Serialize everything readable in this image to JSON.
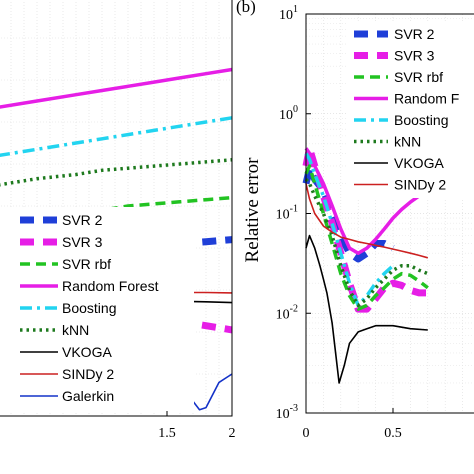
{
  "chart_data": [
    {
      "type": "line",
      "title": "",
      "xlabel": "",
      "ylabel": "",
      "xlim": [
        0.2,
        2
      ],
      "ylim": [
        0,
        1
      ],
      "x_ticks": [
        "1.5",
        "2"
      ],
      "x_tick_values": [
        1.5,
        2
      ],
      "grid": true,
      "legend_position": "bottom-left",
      "series": [
        {
          "name": "SVR 2",
          "color": "#1f3fd8",
          "style": "bold-dash",
          "x": [
            0.2,
            0.5,
            0.8,
            1.0,
            1.2,
            1.4,
            1.6,
            1.8,
            2.0
          ],
          "y": [
            0.34,
            0.36,
            0.38,
            0.39,
            0.4,
            0.405,
            0.41,
            0.415,
            0.42
          ]
        },
        {
          "name": "SVR 3",
          "color": "#e61ee6",
          "style": "bold-dash",
          "x": [
            0.2,
            0.5,
            0.8,
            1.0,
            1.2,
            1.4,
            1.6,
            1.8,
            2.0
          ],
          "y": [
            0.3,
            0.28,
            0.265,
            0.255,
            0.245,
            0.235,
            0.225,
            0.215,
            0.205
          ]
        },
        {
          "name": "SVR rbf",
          "color": "#22c322",
          "style": "dash",
          "x": [
            0.2,
            0.5,
            0.8,
            1.0,
            1.2,
            1.4,
            1.6,
            1.8,
            2.0
          ],
          "y": [
            0.44,
            0.46,
            0.48,
            0.49,
            0.5,
            0.505,
            0.51,
            0.515,
            0.52
          ]
        },
        {
          "name": "Random Forest",
          "color": "#e61ee6",
          "style": "solid-thick",
          "x": [
            0.2,
            0.5,
            0.8,
            1.0,
            1.2,
            1.4,
            1.6,
            1.8,
            2.0
          ],
          "y": [
            0.735,
            0.75,
            0.765,
            0.775,
            0.785,
            0.795,
            0.805,
            0.815,
            0.825
          ]
        },
        {
          "name": "Boosting",
          "color": "#22d4f0",
          "style": "dash-dot",
          "x": [
            0.2,
            0.5,
            0.8,
            1.0,
            1.2,
            1.4,
            1.6,
            1.8,
            2.0
          ],
          "y": [
            0.62,
            0.635,
            0.65,
            0.66,
            0.67,
            0.68,
            0.69,
            0.7,
            0.71
          ]
        },
        {
          "name": "kNN",
          "color": "#1e7a1e",
          "style": "dot",
          "x": [
            0.2,
            0.5,
            0.8,
            1.0,
            1.2,
            1.4,
            1.6,
            1.8,
            2.0
          ],
          "y": [
            0.55,
            0.565,
            0.575,
            0.585,
            0.59,
            0.595,
            0.6,
            0.605,
            0.61
          ]
        },
        {
          "name": "VKOGA",
          "color": "#000000",
          "style": "solid",
          "x": [
            0.2,
            0.5,
            0.8,
            1.0,
            1.2,
            1.4,
            1.6,
            1.8,
            2.0
          ],
          "y": [
            0.26,
            0.262,
            0.265,
            0.268,
            0.27,
            0.272,
            0.273,
            0.272,
            0.27
          ]
        },
        {
          "name": "SINDy 2",
          "color": "#cc2020",
          "style": "solid",
          "x": [
            0.2,
            0.5,
            0.8,
            1.0,
            1.2,
            1.4,
            1.6,
            1.8,
            2.0
          ],
          "y": [
            0.285,
            0.288,
            0.29,
            0.292,
            0.293,
            0.294,
            0.294,
            0.294,
            0.293
          ]
        },
        {
          "name": "Galerkin",
          "color": "#1432c8",
          "style": "solid",
          "x": [
            0.2,
            0.3,
            0.4,
            0.5,
            0.6,
            0.7,
            0.8,
            0.9,
            1.0,
            1.1,
            1.2,
            1.3,
            1.4,
            1.5,
            1.6,
            1.7,
            1.75,
            1.8,
            1.85,
            1.9,
            2.0
          ],
          "y": [
            0.09,
            0.08,
            0.07,
            0.075,
            0.09,
            0.1,
            0.085,
            0.065,
            0.055,
            0.07,
            0.1,
            0.11,
            0.09,
            0.07,
            0.055,
            0.035,
            0.015,
            0.02,
            0.05,
            0.08,
            0.1
          ]
        }
      ]
    },
    {
      "type": "line",
      "panel_label": "(b)",
      "title": "",
      "xlabel": "",
      "ylabel": "Relative error",
      "y_scale": "log",
      "xlim": [
        0,
        1
      ],
      "ylim": [
        0.001,
        10
      ],
      "x_ticks": [
        "0",
        "0.5"
      ],
      "x_tick_values": [
        0,
        0.5
      ],
      "y_ticks": [
        "10^1",
        "10^0",
        "10^-1",
        "10^-2",
        "10^-3"
      ],
      "y_tick_values": [
        10,
        1,
        0.1,
        0.01,
        0.001
      ],
      "grid": true,
      "legend_position": "top-right",
      "legend_labels": [
        "SVR 2",
        "SVR 3",
        "SVR rbf",
        "Random F",
        "Boosting",
        "kNN",
        "VKOGA",
        "SINDy 2"
      ],
      "series": [
        {
          "name": "SVR 2",
          "color": "#1f3fd8",
          "style": "bold-dash",
          "x": [
            0.0,
            0.02,
            0.05,
            0.1,
            0.15,
            0.2,
            0.25,
            0.3,
            0.35,
            0.4,
            0.45,
            0.5
          ],
          "y": [
            0.2,
            0.28,
            0.22,
            0.17,
            0.1,
            0.06,
            0.04,
            0.035,
            0.04,
            0.05,
            0.05,
            0.045
          ]
        },
        {
          "name": "SVR 3",
          "color": "#e61ee6",
          "style": "bold-dash",
          "x": [
            0.0,
            0.02,
            0.05,
            0.1,
            0.15,
            0.2,
            0.25,
            0.3,
            0.35,
            0.4,
            0.45,
            0.5,
            0.55,
            0.6,
            0.65,
            0.7
          ],
          "y": [
            0.3,
            0.45,
            0.3,
            0.15,
            0.08,
            0.04,
            0.02,
            0.011,
            0.011,
            0.014,
            0.018,
            0.02,
            0.019,
            0.017,
            0.016,
            0.016
          ]
        },
        {
          "name": "SVR rbf",
          "color": "#22c322",
          "style": "dash",
          "x": [
            0.0,
            0.02,
            0.05,
            0.1,
            0.15,
            0.2,
            0.25,
            0.3,
            0.35,
            0.4,
            0.45,
            0.5,
            0.55,
            0.6,
            0.65,
            0.7
          ],
          "y": [
            0.25,
            0.3,
            0.2,
            0.1,
            0.05,
            0.025,
            0.015,
            0.011,
            0.012,
            0.015,
            0.018,
            0.022,
            0.025,
            0.024,
            0.021,
            0.018
          ]
        },
        {
          "name": "Random F",
          "color": "#e61ee6",
          "style": "solid-thick",
          "x": [
            0.0,
            0.02,
            0.05,
            0.1,
            0.15,
            0.2,
            0.25,
            0.3,
            0.35,
            0.4,
            0.45,
            0.5,
            0.55,
            0.6,
            0.65,
            0.7
          ],
          "y": [
            0.45,
            0.4,
            0.3,
            0.2,
            0.12,
            0.07,
            0.045,
            0.04,
            0.045,
            0.055,
            0.07,
            0.09,
            0.11,
            0.13,
            0.15,
            0.17
          ]
        },
        {
          "name": "Boosting",
          "color": "#22d4f0",
          "style": "dash-dot",
          "x": [
            0.0,
            0.02,
            0.05,
            0.1,
            0.15,
            0.2,
            0.25,
            0.3,
            0.35,
            0.4,
            0.45,
            0.5
          ],
          "y": [
            0.4,
            0.35,
            0.25,
            0.15,
            0.08,
            0.04,
            0.02,
            0.012,
            0.015,
            0.02,
            0.025,
            0.03
          ]
        },
        {
          "name": "kNN",
          "color": "#1e7a1e",
          "style": "dot",
          "x": [
            0.0,
            0.02,
            0.05,
            0.1,
            0.15,
            0.2,
            0.25,
            0.3,
            0.35,
            0.4,
            0.45,
            0.5,
            0.55,
            0.6,
            0.65,
            0.7
          ],
          "y": [
            0.22,
            0.2,
            0.15,
            0.1,
            0.06,
            0.03,
            0.017,
            0.012,
            0.014,
            0.018,
            0.022,
            0.027,
            0.03,
            0.03,
            0.027,
            0.025
          ]
        },
        {
          "name": "VKOGA",
          "color": "#000000",
          "style": "solid",
          "x": [
            0.0,
            0.02,
            0.05,
            0.08,
            0.1,
            0.12,
            0.15,
            0.17,
            0.19,
            0.22,
            0.25,
            0.3,
            0.35,
            0.4,
            0.5,
            0.6,
            0.7
          ],
          "y": [
            0.045,
            0.06,
            0.045,
            0.03,
            0.022,
            0.016,
            0.008,
            0.004,
            0.002,
            0.003,
            0.005,
            0.0065,
            0.007,
            0.0075,
            0.0075,
            0.007,
            0.0068
          ]
        },
        {
          "name": "SINDy 2",
          "color": "#cc2020",
          "style": "solid",
          "x": [
            0.0,
            0.02,
            0.05,
            0.1,
            0.15,
            0.2,
            0.25,
            0.3,
            0.35,
            0.4,
            0.45,
            0.5,
            0.55,
            0.6,
            0.65,
            0.7
          ],
          "y": [
            0.2,
            0.14,
            0.1,
            0.075,
            0.065,
            0.058,
            0.055,
            0.052,
            0.05,
            0.048,
            0.046,
            0.044,
            0.042,
            0.04,
            0.038,
            0.036
          ]
        }
      ]
    }
  ]
}
